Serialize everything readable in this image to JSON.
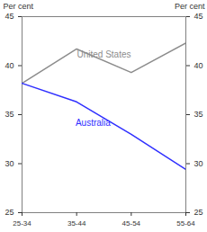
{
  "chart_data": {
    "type": "line",
    "ylabel": "Per cent",
    "categories": [
      "25-34",
      "35-44",
      "45-54",
      "55-64"
    ],
    "series": [
      {
        "name": "United States",
        "color": "#8c8c8c",
        "values": [
          38.2,
          41.7,
          39.3,
          42.3
        ]
      },
      {
        "name": "Australia",
        "color": "#2f2fff",
        "values": [
          38.2,
          36.3,
          33.0,
          29.4
        ]
      }
    ],
    "ylim": [
      25,
      45
    ],
    "yticks": [
      25,
      30,
      35,
      40,
      45
    ],
    "grid": false
  }
}
